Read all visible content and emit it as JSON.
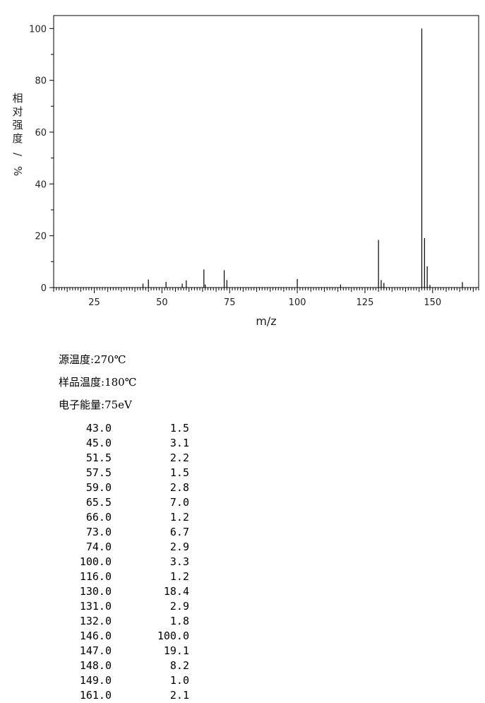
{
  "chart_data": {
    "type": "bar",
    "xlabel": "m/z",
    "ylabel": "相对强度/%",
    "xlim": [
      10,
      167
    ],
    "ylim": [
      0,
      105
    ],
    "x_ticks": [
      25,
      50,
      75,
      100,
      125,
      150
    ],
    "y_ticks": [
      0,
      20,
      40,
      60,
      80,
      100
    ],
    "x": [
      43.0,
      45.0,
      51.5,
      57.5,
      59.0,
      65.5,
      66.0,
      73.0,
      74.0,
      100.0,
      116.0,
      130.0,
      131.0,
      132.0,
      146.0,
      147.0,
      148.0,
      149.0,
      161.0
    ],
    "values": [
      1.5,
      3.1,
      2.2,
      1.5,
      2.8,
      7.0,
      1.2,
      6.7,
      2.9,
      3.3,
      1.2,
      18.4,
      2.9,
      1.8,
      100.0,
      19.1,
      8.2,
      1.0,
      2.1
    ],
    "grid": false
  },
  "conditions": [
    {
      "label": "源温度",
      "value": ":270℃"
    },
    {
      "label": "样品温度",
      "value": ":180℃"
    },
    {
      "label": "电子能量",
      "value": ":75eV"
    }
  ],
  "peak_table": [
    [
      "43.0",
      "1.5"
    ],
    [
      "45.0",
      "3.1"
    ],
    [
      "51.5",
      "2.2"
    ],
    [
      "57.5",
      "1.5"
    ],
    [
      "59.0",
      "2.8"
    ],
    [
      "65.5",
      "7.0"
    ],
    [
      "66.0",
      "1.2"
    ],
    [
      "73.0",
      "6.7"
    ],
    [
      "74.0",
      "2.9"
    ],
    [
      "100.0",
      "3.3"
    ],
    [
      "116.0",
      "1.2"
    ],
    [
      "130.0",
      "18.4"
    ],
    [
      "131.0",
      "2.9"
    ],
    [
      "132.0",
      "1.8"
    ],
    [
      "146.0",
      "100.0"
    ],
    [
      "147.0",
      "19.1"
    ],
    [
      "148.0",
      "8.2"
    ],
    [
      "149.0",
      "1.0"
    ],
    [
      "161.0",
      "2.1"
    ]
  ]
}
